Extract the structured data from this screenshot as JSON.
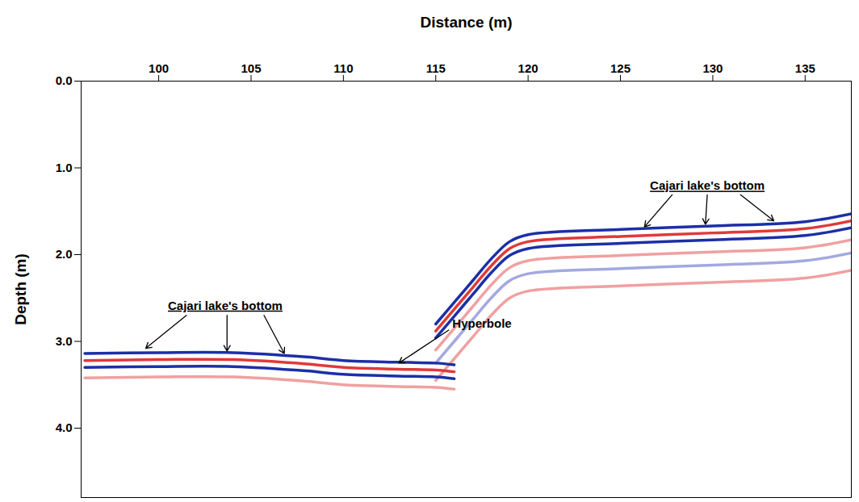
{
  "chart_data": {
    "type": "line",
    "xlabel": "Distance (m)",
    "ylabel": "Depth (m)",
    "xlim": [
      95.8,
      137.5
    ],
    "xticks": [
      100,
      105,
      110,
      115,
      120,
      125,
      130,
      135
    ],
    "ylim": [
      0,
      4.8
    ],
    "yticks": [
      {
        "value": 0,
        "label": "0.0"
      },
      {
        "value": 1,
        "label": "1.0"
      },
      {
        "value": 2,
        "label": "2.0"
      },
      {
        "value": 3,
        "label": "3.0"
      },
      {
        "value": 4,
        "label": "4.0"
      }
    ],
    "grid": false,
    "x": [
      96,
      100,
      104,
      108,
      110,
      113,
      115,
      116,
      117,
      118,
      119,
      120,
      125,
      130,
      135,
      137.5
    ],
    "series": [
      {
        "color": "#f0a0a0",
        "values": [
          3.42,
          3.41,
          3.41,
          3.46,
          3.5,
          3.52,
          3.53,
          3.55,
          null,
          null,
          null,
          null,
          null,
          null,
          null,
          null
        ]
      },
      {
        "color": "#f0a0a0",
        "values": [
          null,
          null,
          null,
          null,
          null,
          null,
          3.45,
          3.2,
          2.95,
          2.7,
          2.5,
          2.42,
          2.36,
          2.32,
          2.27,
          2.18
        ]
      },
      {
        "color": "#a3a8e0",
        "values": [
          null,
          null,
          null,
          null,
          null,
          null,
          3.25,
          3.0,
          2.75,
          2.5,
          2.3,
          2.22,
          2.16,
          2.12,
          2.07,
          1.98
        ]
      },
      {
        "color": "#f0a0a0",
        "values": [
          null,
          null,
          null,
          null,
          null,
          null,
          3.1,
          2.85,
          2.6,
          2.35,
          2.15,
          2.07,
          2.01,
          1.97,
          1.92,
          1.83
        ]
      },
      {
        "color": "#1c2fa8",
        "values": [
          3.3,
          3.29,
          3.29,
          3.34,
          3.38,
          3.4,
          3.41,
          3.43,
          null,
          null,
          null,
          null,
          null,
          null,
          null,
          null
        ]
      },
      {
        "color": "#e03a3a",
        "values": [
          3.22,
          3.21,
          3.21,
          3.26,
          3.3,
          3.32,
          3.33,
          3.35,
          null,
          null,
          null,
          null,
          null,
          null,
          null,
          null
        ]
      },
      {
        "color": "#1c2fa8",
        "values": [
          3.14,
          3.13,
          3.13,
          3.18,
          3.22,
          3.24,
          3.25,
          3.27,
          null,
          null,
          null,
          null,
          null,
          null,
          null,
          null
        ]
      },
      {
        "color": "#1c2fa8",
        "values": [
          null,
          null,
          null,
          null,
          null,
          null,
          2.96,
          2.71,
          2.46,
          2.21,
          2.01,
          1.93,
          1.87,
          1.83,
          1.78,
          1.69
        ]
      },
      {
        "color": "#e03a3a",
        "values": [
          null,
          null,
          null,
          null,
          null,
          null,
          2.88,
          2.63,
          2.38,
          2.13,
          1.93,
          1.85,
          1.79,
          1.75,
          1.7,
          1.61
        ]
      },
      {
        "color": "#1c2fa8",
        "values": [
          null,
          null,
          null,
          null,
          null,
          null,
          2.8,
          2.55,
          2.3,
          2.05,
          1.85,
          1.77,
          1.71,
          1.67,
          1.62,
          1.53
        ]
      }
    ],
    "annotations": [
      {
        "text": "Cajari lake's bottom",
        "x": 103.6,
        "y": 2.59,
        "underline": true,
        "arrows": [
          {
            "x1": 101.5,
            "y1": 2.7,
            "x2": 99.3,
            "y2": 3.08
          },
          {
            "x1": 103.7,
            "y1": 2.7,
            "x2": 103.7,
            "y2": 3.11
          },
          {
            "x1": 105.7,
            "y1": 2.7,
            "x2": 106.8,
            "y2": 3.14
          }
        ]
      },
      {
        "text": "Cajari lake's bottom",
        "x": 129.7,
        "y": 1.21,
        "underline": true,
        "arrows": [
          {
            "x1": 127.8,
            "y1": 1.31,
            "x2": 126.3,
            "y2": 1.68
          },
          {
            "x1": 129.7,
            "y1": 1.31,
            "x2": 129.6,
            "y2": 1.65
          },
          {
            "x1": 131.5,
            "y1": 1.31,
            "x2": 133.3,
            "y2": 1.61
          }
        ]
      },
      {
        "text": "Hyperbole",
        "x": 115.9,
        "y": 2.8,
        "underline": false,
        "arrows": [
          {
            "x1": 115.7,
            "y1": 2.87,
            "x2": 113.0,
            "y2": 3.25
          }
        ]
      }
    ]
  }
}
